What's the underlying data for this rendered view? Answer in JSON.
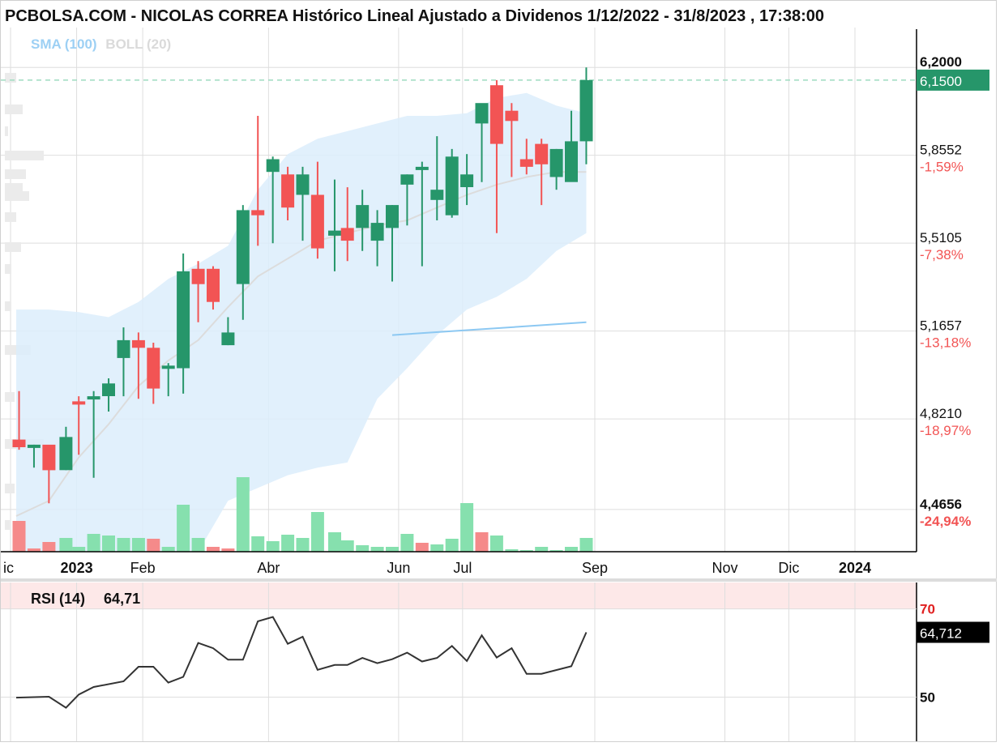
{
  "title": "PCBOLSA.COM - NICOLAS CORREA Histórico Lineal Ajustado a Dividenos 1/12/2022 - 31/8/2023 , 17:38:00",
  "indicators": {
    "sma_label": "SMA (100)",
    "boll_label": "BOLL (20)"
  },
  "colors": {
    "up": "#26966a",
    "down": "#f25454",
    "vol_up": "#86e0ae",
    "vol_down": "#f58a8a",
    "boll_fill": "#dcedfb",
    "sma": "#8cc8f2",
    "boll_mid": "#dcdcdc",
    "last_price_bg": "#26966a",
    "pct_text": "#f25454",
    "rsi_band": "#fde8e8",
    "rsi_line": "#333333"
  },
  "chart_data": [
    {
      "type": "candlestick",
      "title": "PCBOLSA.COM - NICOLAS CORREA Histórico Lineal Ajustado a Dividenos 1/12/2022 - 31/8/2023 , 17:38:00",
      "x_axis_labels": [
        {
          "label": "ic",
          "date": "2022-12-01"
        },
        {
          "label": "2023",
          "date": "2023-01-01",
          "bold": true
        },
        {
          "label": "Feb",
          "date": "2023-02-01"
        },
        {
          "label": "Abr",
          "date": "2023-04-01"
        },
        {
          "label": "Jun",
          "date": "2023-06-01"
        },
        {
          "label": "Jul",
          "date": "2023-07-01"
        },
        {
          "label": "Sep",
          "date": "2023-09-01"
        },
        {
          "label": "Nov",
          "date": "2023-11-01"
        },
        {
          "label": "Dic",
          "date": "2023-12-01"
        },
        {
          "label": "2024",
          "date": "2024-01-01",
          "bold": true
        }
      ],
      "y_ticks": [
        {
          "value": 6.2,
          "label": "6,2000",
          "bold": true
        },
        {
          "value": 5.8552,
          "label": "5,8552",
          "pct": "-1,59%"
        },
        {
          "value": 5.5105,
          "label": "5,5105",
          "pct": "-7,38%"
        },
        {
          "value": 5.1657,
          "label": "5,1657",
          "pct": "-13,18%"
        },
        {
          "value": 4.821,
          "label": "4,8210",
          "pct": "-18,97%"
        },
        {
          "value": 4.4656,
          "label": "4,4656",
          "pct": "-24,94%",
          "bold": true
        }
      ],
      "ylim": [
        4.3,
        6.35
      ],
      "last_price": {
        "value": 6.15,
        "label": "6,1500"
      },
      "candles": [
        {
          "date": "2022-12-05",
          "open": 4.74,
          "high": 4.93,
          "low": 4.7,
          "close": 4.71
        },
        {
          "date": "2022-12-12",
          "open": 4.71,
          "high": 4.72,
          "low": 4.63,
          "close": 4.72
        },
        {
          "date": "2022-12-19",
          "open": 4.72,
          "high": 4.71,
          "low": 4.49,
          "close": 4.62
        },
        {
          "date": "2022-12-27",
          "open": 4.62,
          "high": 4.79,
          "low": 4.62,
          "close": 4.75
        },
        {
          "date": "2023-01-02",
          "open": 4.89,
          "high": 4.91,
          "low": 4.68,
          "close": 4.88
        },
        {
          "date": "2023-01-09",
          "open": 4.9,
          "high": 4.93,
          "low": 4.59,
          "close": 4.91
        },
        {
          "date": "2023-01-16",
          "open": 4.91,
          "high": 4.98,
          "low": 4.85,
          "close": 4.96
        },
        {
          "date": "2023-01-23",
          "open": 5.06,
          "high": 5.18,
          "low": 4.91,
          "close": 5.13
        },
        {
          "date": "2023-01-30",
          "open": 5.13,
          "high": 5.16,
          "low": 4.9,
          "close": 5.1
        },
        {
          "date": "2023-02-06",
          "open": 5.1,
          "high": 5.12,
          "low": 4.88,
          "close": 4.94
        },
        {
          "date": "2023-02-13",
          "open": 5.02,
          "high": 5.04,
          "low": 4.91,
          "close": 5.03
        },
        {
          "date": "2023-02-20",
          "open": 5.02,
          "high": 5.47,
          "low": 4.92,
          "close": 5.4
        },
        {
          "date": "2023-02-27",
          "open": 5.41,
          "high": 5.44,
          "low": 5.2,
          "close": 5.35
        },
        {
          "date": "2023-03-06",
          "open": 5.41,
          "high": 5.42,
          "low": 5.25,
          "close": 5.28
        },
        {
          "date": "2023-03-13",
          "open": 5.11,
          "high": 5.22,
          "low": 5.11,
          "close": 5.16
        },
        {
          "date": "2023-03-20",
          "open": 5.35,
          "high": 5.66,
          "low": 5.21,
          "close": 5.64
        },
        {
          "date": "2023-03-27",
          "open": 5.64,
          "high": 6.01,
          "low": 5.5,
          "close": 5.62
        },
        {
          "date": "2023-04-03",
          "open": 5.79,
          "high": 5.85,
          "low": 5.51,
          "close": 5.84
        },
        {
          "date": "2023-04-10",
          "open": 5.78,
          "high": 5.81,
          "low": 5.6,
          "close": 5.65
        },
        {
          "date": "2023-04-17",
          "open": 5.7,
          "high": 5.81,
          "low": 5.52,
          "close": 5.78
        },
        {
          "date": "2023-04-24",
          "open": 5.7,
          "high": 5.83,
          "low": 5.45,
          "close": 5.49
        },
        {
          "date": "2023-05-02",
          "open": 5.54,
          "high": 5.76,
          "low": 5.4,
          "close": 5.56
        },
        {
          "date": "2023-05-08",
          "open": 5.57,
          "high": 5.73,
          "low": 5.44,
          "close": 5.52
        },
        {
          "date": "2023-05-15",
          "open": 5.57,
          "high": 5.72,
          "low": 5.48,
          "close": 5.66
        },
        {
          "date": "2023-05-22",
          "open": 5.52,
          "high": 5.64,
          "low": 5.42,
          "close": 5.59
        },
        {
          "date": "2023-05-29",
          "open": 5.57,
          "high": 5.66,
          "low": 5.36,
          "close": 5.66
        },
        {
          "date": "2023-06-05",
          "open": 5.74,
          "high": 5.78,
          "low": 5.58,
          "close": 5.78
        },
        {
          "date": "2023-06-12",
          "open": 5.81,
          "high": 5.83,
          "low": 5.42,
          "close": 5.81
        },
        {
          "date": "2023-06-19",
          "open": 5.68,
          "high": 5.93,
          "low": 5.6,
          "close": 5.72
        },
        {
          "date": "2023-06-26",
          "open": 5.62,
          "high": 5.88,
          "low": 5.61,
          "close": 5.85
        },
        {
          "date": "2023-07-03",
          "open": 5.73,
          "high": 5.86,
          "low": 5.66,
          "close": 5.78
        },
        {
          "date": "2023-07-10",
          "open": 5.98,
          "high": 6.04,
          "low": 5.75,
          "close": 6.06
        },
        {
          "date": "2023-07-17",
          "open": 6.13,
          "high": 6.15,
          "low": 5.55,
          "close": 5.9
        },
        {
          "date": "2023-07-24",
          "open": 6.03,
          "high": 6.06,
          "low": 5.77,
          "close": 5.99
        },
        {
          "date": "2023-07-31",
          "open": 5.84,
          "high": 5.92,
          "low": 5.78,
          "close": 5.81
        },
        {
          "date": "2023-08-07",
          "open": 5.9,
          "high": 5.92,
          "low": 5.66,
          "close": 5.82
        },
        {
          "date": "2023-08-14",
          "open": 5.77,
          "high": 5.88,
          "low": 5.72,
          "close": 5.88
        },
        {
          "date": "2023-08-21",
          "open": 5.75,
          "high": 6.03,
          "low": 5.77,
          "close": 5.91
        },
        {
          "date": "2023-08-28",
          "open": 5.91,
          "high": 6.2,
          "low": 5.82,
          "close": 6.15
        }
      ],
      "volume_direction": [
        "down",
        "down",
        "down",
        "up",
        "up",
        "up",
        "up",
        "up",
        "up",
        "down",
        "up",
        "up",
        "up",
        "down",
        "down",
        "up",
        "up",
        "up",
        "up",
        "up",
        "up",
        "up",
        "up",
        "up",
        "up",
        "up",
        "up",
        "down",
        "up",
        "up",
        "up",
        "down",
        "up",
        "up",
        "up",
        "up",
        "up",
        "up",
        "up"
      ],
      "volume_relative": [
        0.38,
        0.04,
        0.12,
        0.17,
        0.06,
        0.22,
        0.2,
        0.17,
        0.17,
        0.16,
        0.06,
        0.58,
        0.17,
        0.06,
        0.04,
        0.92,
        0.19,
        0.13,
        0.21,
        0.17,
        0.49,
        0.24,
        0.14,
        0.08,
        0.06,
        0.06,
        0.22,
        0.11,
        0.09,
        0.16,
        0.6,
        0.24,
        0.2,
        0.03,
        0.02,
        0.06,
        0.02,
        0.06,
        0.17
      ],
      "sma_100": [
        {
          "date": "2023-05-29",
          "value": 5.15
        },
        {
          "date": "2023-08-28",
          "value": 5.2
        }
      ],
      "bollinger_20": {
        "dates": [
          "2022-12-05",
          "2022-12-19",
          "2023-01-02",
          "2023-01-16",
          "2023-01-30",
          "2023-02-13",
          "2023-02-27",
          "2023-03-13",
          "2023-03-27",
          "2023-04-10",
          "2023-04-24",
          "2023-05-08",
          "2023-05-22",
          "2023-06-05",
          "2023-06-19",
          "2023-07-03",
          "2023-07-17",
          "2023-07-31",
          "2023-08-14",
          "2023-08-28"
        ],
        "upper": [
          5.25,
          5.25,
          5.24,
          5.22,
          5.28,
          5.37,
          5.43,
          5.5,
          5.72,
          5.86,
          5.92,
          5.95,
          5.98,
          6.01,
          6.01,
          6.02,
          6.08,
          6.1,
          6.05,
          6.02
        ],
        "middle": [
          4.44,
          4.5,
          4.67,
          4.8,
          4.95,
          5.05,
          5.13,
          5.26,
          5.38,
          5.45,
          5.52,
          5.55,
          5.58,
          5.6,
          5.65,
          5.7,
          5.74,
          5.77,
          5.79,
          5.79
        ],
        "lower": [
          3.75,
          3.8,
          3.9,
          4.0,
          4.15,
          4.2,
          4.3,
          4.5,
          4.55,
          4.6,
          4.63,
          4.65,
          4.9,
          5.02,
          5.15,
          5.25,
          5.3,
          5.37,
          5.48,
          5.55
        ]
      }
    },
    {
      "type": "line",
      "title": "RSI (14)",
      "current_value": "64,71",
      "last_value_label": "64,712",
      "y_ticks": [
        {
          "value": 70,
          "label": "70",
          "overbought": true
        },
        {
          "value": 50,
          "label": "50"
        }
      ],
      "ylim": [
        40,
        76
      ],
      "overbought_band": [
        70,
        76
      ],
      "series": [
        {
          "name": "RSI (14)",
          "points": [
            {
              "date": "2022-12-05",
              "value": 49.9
            },
            {
              "date": "2022-12-19",
              "value": 50.1
            },
            {
              "date": "2022-12-27",
              "value": 47.6
            },
            {
              "date": "2023-01-02",
              "value": 50.6
            },
            {
              "date": "2023-01-09",
              "value": 52.3
            },
            {
              "date": "2023-01-23",
              "value": 53.6
            },
            {
              "date": "2023-01-30",
              "value": 56.9
            },
            {
              "date": "2023-02-06",
              "value": 56.9
            },
            {
              "date": "2023-02-13",
              "value": 53.3
            },
            {
              "date": "2023-02-20",
              "value": 54.6
            },
            {
              "date": "2023-02-27",
              "value": 62.3
            },
            {
              "date": "2023-03-06",
              "value": 61.1
            },
            {
              "date": "2023-03-13",
              "value": 58.5
            },
            {
              "date": "2023-03-20",
              "value": 58.5
            },
            {
              "date": "2023-03-27",
              "value": 67.2
            },
            {
              "date": "2023-04-03",
              "value": 68.2
            },
            {
              "date": "2023-04-10",
              "value": 62.1
            },
            {
              "date": "2023-04-17",
              "value": 63.7
            },
            {
              "date": "2023-04-24",
              "value": 56.2
            },
            {
              "date": "2023-05-02",
              "value": 57.3
            },
            {
              "date": "2023-05-08",
              "value": 57.3
            },
            {
              "date": "2023-05-15",
              "value": 58.9
            },
            {
              "date": "2023-05-22",
              "value": 57.7
            },
            {
              "date": "2023-05-29",
              "value": 58.6
            },
            {
              "date": "2023-06-05",
              "value": 60.1
            },
            {
              "date": "2023-06-12",
              "value": 58.1
            },
            {
              "date": "2023-06-19",
              "value": 58.9
            },
            {
              "date": "2023-06-26",
              "value": 61.6
            },
            {
              "date": "2023-07-03",
              "value": 58.2
            },
            {
              "date": "2023-07-10",
              "value": 64.0
            },
            {
              "date": "2023-07-17",
              "value": 59.0
            },
            {
              "date": "2023-07-24",
              "value": 61.1
            },
            {
              "date": "2023-07-31",
              "value": 55.3
            },
            {
              "date": "2023-08-07",
              "value": 55.3
            },
            {
              "date": "2023-08-21",
              "value": 57.0
            },
            {
              "date": "2023-08-28",
              "value": 64.7
            }
          ]
        }
      ]
    }
  ]
}
